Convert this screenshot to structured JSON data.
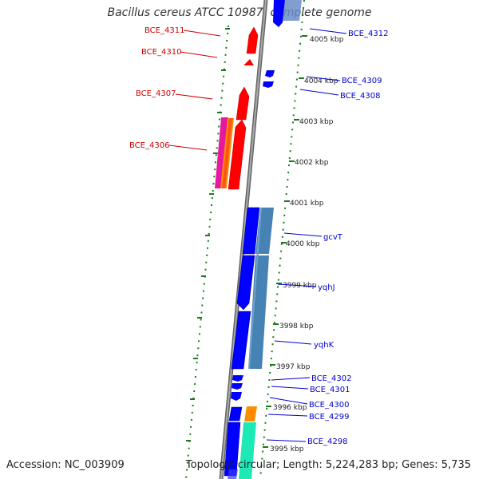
{
  "header": {
    "title": "Bacillus cereus ATCC 10987, complete genome"
  },
  "footer": {
    "accession": "Accession: NC_003909",
    "topology": "Topology: circular; Length: 5,224,283 bp; Genes: 5,735"
  },
  "colors": {
    "forward_cds": "#ff0000",
    "reverse_cds": "#0000ff",
    "blue_feature": "#4682b4",
    "magenta_feature": "#e6199e",
    "orange_feature": "#ff8c00",
    "aqua_feature": "#1de9b6",
    "tick_mark": "#1a7a1a",
    "backbone": "#888888",
    "forward_label": "#cc0000",
    "reverse_label": "#0000cc"
  },
  "ticks": [
    "4005 kbp",
    "4004 kbp",
    "4003 kbp",
    "4002 kbp",
    "4001 kbp",
    "4000 kbp",
    "3999 kbp",
    "3998 kbp",
    "3997 kbp",
    "3996 kbp",
    "3995 kbp"
  ],
  "left_labels": [
    "BCE_4311",
    "BCE_4310",
    "BCE_4307",
    "BCE_4306"
  ],
  "right_labels": [
    "BCE_4312",
    "BCE_4309",
    "BCE_4308",
    "gcvT",
    "yqhJ",
    "yqhK",
    "BCE_4302",
    "BCE_4301",
    "BCE_4300",
    "BCE_4299",
    "BCE_4298"
  ]
}
